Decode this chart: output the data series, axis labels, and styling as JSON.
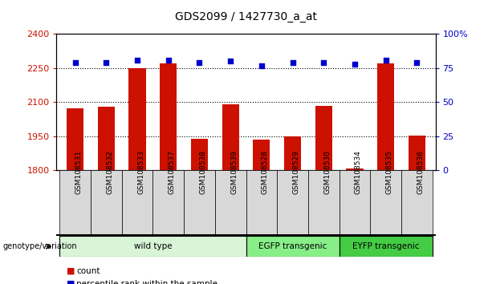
{
  "title": "GDS2099 / 1427730_a_at",
  "samples": [
    "GSM108531",
    "GSM108532",
    "GSM108533",
    "GSM108537",
    "GSM108538",
    "GSM108539",
    "GSM108528",
    "GSM108529",
    "GSM108530",
    "GSM108534",
    "GSM108535",
    "GSM108536"
  ],
  "bar_heights": [
    2075,
    2080,
    2250,
    2270,
    1940,
    2090,
    1935,
    1950,
    2085,
    1810,
    2270,
    1955
  ],
  "percentiles": [
    79,
    79,
    81,
    81,
    79,
    80,
    77,
    79,
    79,
    78,
    81,
    79
  ],
  "bar_color": "#CC1100",
  "dot_color": "#0000CC",
  "ylim_left": [
    1800,
    2400
  ],
  "ylim_right": [
    0,
    100
  ],
  "yticks_left": [
    1800,
    1950,
    2100,
    2250,
    2400
  ],
  "yticks_right": [
    0,
    25,
    50,
    75,
    100
  ],
  "dotted_lines": [
    1950,
    2100,
    2250
  ],
  "groups": [
    {
      "label": "wild type",
      "start": 0,
      "end": 6,
      "color": "#d8f5d8"
    },
    {
      "label": "EGFP transgenic",
      "start": 6,
      "end": 9,
      "color": "#88ee88"
    },
    {
      "label": "EYFP transgenic",
      "start": 9,
      "end": 12,
      "color": "#44cc44"
    }
  ],
  "group_header": "genotype/variation",
  "legend_count_label": "count",
  "legend_pct_label": "percentile rank within the sample",
  "bg_color": "#ffffff",
  "plot_bg": "#ffffff",
  "tick_cell_color": "#d8d8d8",
  "tick_label_color_left": "#CC1100",
  "tick_label_color_right": "#0000CC",
  "title_fontsize": 10,
  "bar_width": 0.55
}
